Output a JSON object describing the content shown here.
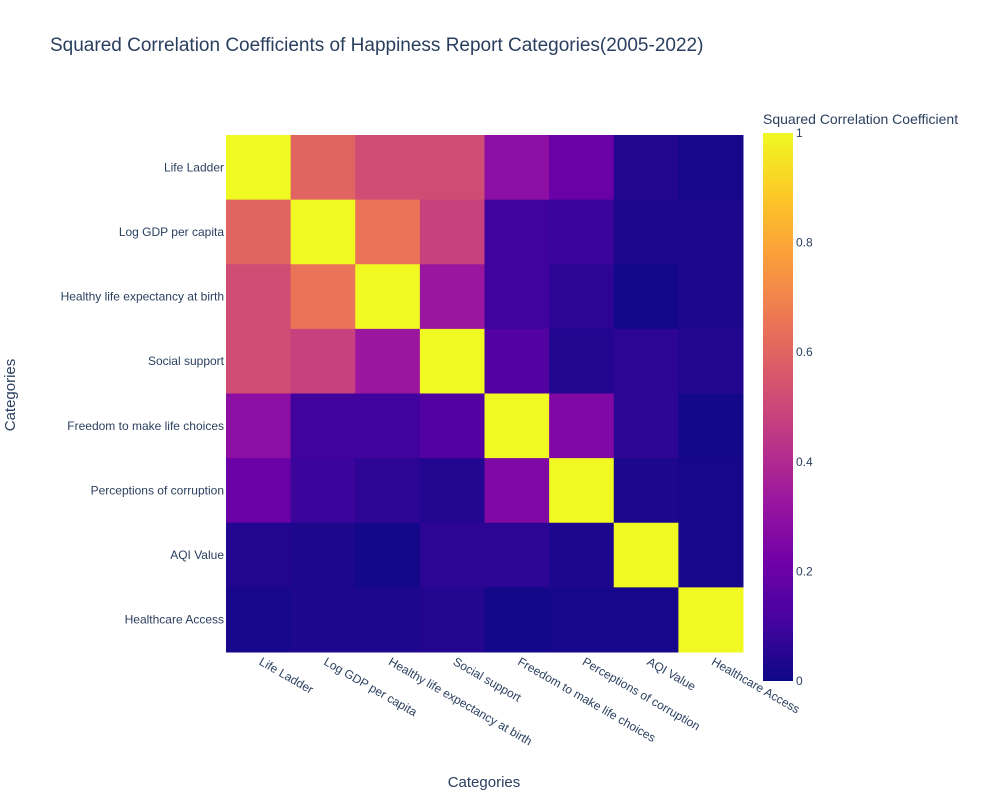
{
  "chart_data": {
    "type": "heatmap",
    "title": "Squared Correlation Coefficients of Happiness Report Categories(2005-2022)",
    "xlabel": "Categories",
    "ylabel": "Categories",
    "categories": [
      "Life Ladder",
      "Log GDP per capita",
      "Healthy life expectancy at birth",
      "Social support",
      "Freedom to make life choices",
      "Perceptions of corruption",
      "AQI Value",
      "Healthcare Access"
    ],
    "values": [
      [
        1.0,
        0.6,
        0.52,
        0.52,
        0.29,
        0.2,
        0.04,
        0.02
      ],
      [
        0.6,
        1.0,
        0.65,
        0.48,
        0.1,
        0.09,
        0.03,
        0.03
      ],
      [
        0.52,
        0.65,
        1.0,
        0.33,
        0.1,
        0.06,
        0.01,
        0.03
      ],
      [
        0.52,
        0.48,
        0.33,
        1.0,
        0.14,
        0.04,
        0.06,
        0.04
      ],
      [
        0.29,
        0.1,
        0.1,
        0.14,
        1.0,
        0.26,
        0.06,
        0.01
      ],
      [
        0.2,
        0.09,
        0.06,
        0.04,
        0.26,
        1.0,
        0.03,
        0.02
      ],
      [
        0.04,
        0.03,
        0.01,
        0.06,
        0.06,
        0.03,
        1.0,
        0.02
      ],
      [
        0.02,
        0.03,
        0.03,
        0.04,
        0.01,
        0.02,
        0.02,
        1.0
      ]
    ],
    "zlim": [
      0,
      1
    ],
    "colorscale": "plasma",
    "colorbar": {
      "title": "Squared Correlation Coefficient",
      "ticks": [
        "0",
        "0.2",
        "0.4",
        "0.6",
        "0.8",
        "1"
      ],
      "tick_values": [
        0,
        0.2,
        0.4,
        0.6,
        0.8,
        1
      ]
    },
    "grid": false
  }
}
